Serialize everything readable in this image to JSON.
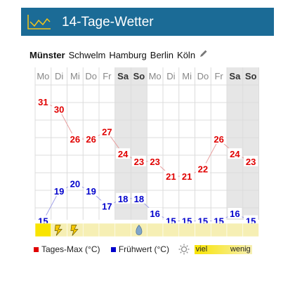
{
  "app": {
    "title": "14-Tage-Wetter"
  },
  "cities": {
    "items": [
      "Münster",
      "Schwelm",
      "Hamburg",
      "Berlin",
      "Köln"
    ],
    "active": "Münster"
  },
  "days": [
    "Mo",
    "Di",
    "Mi",
    "Do",
    "Fr",
    "Sa",
    "So",
    "Mo",
    "Di",
    "Mi",
    "Do",
    "Fr",
    "Sa",
    "So"
  ],
  "weekend_days": [
    5,
    6,
    12,
    13
  ],
  "colors": {
    "header": "#1b6b96",
    "max": "#e00000",
    "early": "#0000cc",
    "weekend_bg": "#e6e6e6",
    "sun_strong": "#f9e400",
    "sun_weak": "#f6efb4"
  },
  "chart_data": {
    "type": "line",
    "x": [
      "Mo",
      "Di",
      "Mi",
      "Do",
      "Fr",
      "Sa",
      "So",
      "Mo",
      "Di",
      "Mi",
      "Do",
      "Fr",
      "Sa",
      "So"
    ],
    "series": [
      {
        "name": "Tages-Max (°C)",
        "values": [
          31,
          30,
          26,
          26,
          27,
          24,
          23,
          23,
          21,
          21,
          22,
          26,
          24,
          23
        ]
      },
      {
        "name": "Frühwert (°C)",
        "values": [
          15,
          19,
          20,
          19,
          17,
          18,
          18,
          16,
          15,
          15,
          15,
          15,
          16,
          15
        ]
      }
    ],
    "weather_icons": [
      "",
      "lightning",
      "lightning",
      "",
      "",
      "",
      "rain",
      "",
      "",
      "",
      "",
      "",
      "",
      ""
    ],
    "sunshine": [
      "viel",
      "wenig",
      "wenig",
      "wenig",
      "wenig",
      "wenig",
      "wenig",
      "wenig",
      "wenig",
      "wenig",
      "wenig",
      "wenig",
      "wenig",
      "wenig"
    ]
  },
  "legend": {
    "max_label": "Tages-Max (°C)",
    "early_label": "Frühwert (°C)",
    "sun_high": "viel",
    "sun_low": "wenig"
  }
}
